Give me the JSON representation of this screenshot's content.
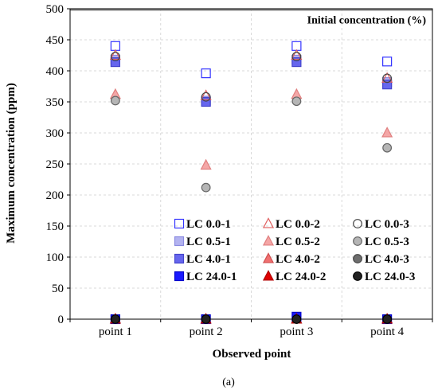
{
  "chart_data": {
    "type": "scatter",
    "xlabel": "Observed point",
    "ylabel": "Maximum concentration (ppm)",
    "categories": [
      "point 1",
      "point 2",
      "point 3",
      "point 4"
    ],
    "ylim": [
      0,
      500
    ],
    "yticks": [
      0,
      50,
      100,
      150,
      200,
      250,
      300,
      350,
      400,
      450,
      500
    ],
    "grid": true,
    "legend_position": "bottom-right",
    "reference_line": {
      "value": 500,
      "label": "Initial concentration (%)"
    },
    "caption": "(a)",
    "series": [
      {
        "name": "LC 0.0-1",
        "marker": "square",
        "fill": "none",
        "stroke": "#3333ff",
        "values": [
          440,
          396,
          440,
          415
        ]
      },
      {
        "name": "LC 0.0-2",
        "marker": "triangle",
        "fill": "none",
        "stroke": "#e06060",
        "values": [
          425,
          360,
          425,
          388
        ]
      },
      {
        "name": "LC 0.0-3",
        "marker": "circle",
        "fill": "none",
        "stroke": "#444444",
        "values": [
          423,
          358,
          423,
          388
        ]
      },
      {
        "name": "LC 0.5-1",
        "marker": "square",
        "fill": "#b3b3f0",
        "stroke": "#8a8ae0",
        "values": [
          418,
          352,
          418,
          382
        ]
      },
      {
        "name": "LC 0.5-2",
        "marker": "triangle",
        "fill": "#f4a6a6",
        "stroke": "#e08080",
        "values": [
          362,
          248,
          362,
          300
        ]
      },
      {
        "name": "LC 0.5-3",
        "marker": "circle",
        "fill": "#b5b5b5",
        "stroke": "#666666",
        "values": [
          352,
          212,
          351,
          276
        ]
      },
      {
        "name": "LC 4.0-1",
        "marker": "square",
        "fill": "#6666ee",
        "stroke": "#4444cc",
        "values": [
          414,
          350,
          414,
          378
        ]
      },
      {
        "name": "LC 4.0-2",
        "marker": "triangle",
        "fill": "#f07070",
        "stroke": "#d05050",
        "values": [
          0,
          0,
          0,
          0
        ]
      },
      {
        "name": "LC 4.0-3",
        "marker": "circle",
        "fill": "#6e6e6e",
        "stroke": "#444444",
        "values": [
          0,
          0,
          0,
          0
        ]
      },
      {
        "name": "LC 24.0-1",
        "marker": "square",
        "fill": "#1a1aff",
        "stroke": "#0000cc",
        "values": [
          0,
          0,
          4,
          0
        ]
      },
      {
        "name": "LC 24.0-2",
        "marker": "triangle",
        "fill": "#e00000",
        "stroke": "#b00000",
        "values": [
          0,
          0,
          0,
          0
        ]
      },
      {
        "name": "LC 24.0-3",
        "marker": "circle",
        "fill": "#222222",
        "stroke": "#000000",
        "values": [
          0,
          0,
          0,
          0
        ]
      }
    ]
  }
}
